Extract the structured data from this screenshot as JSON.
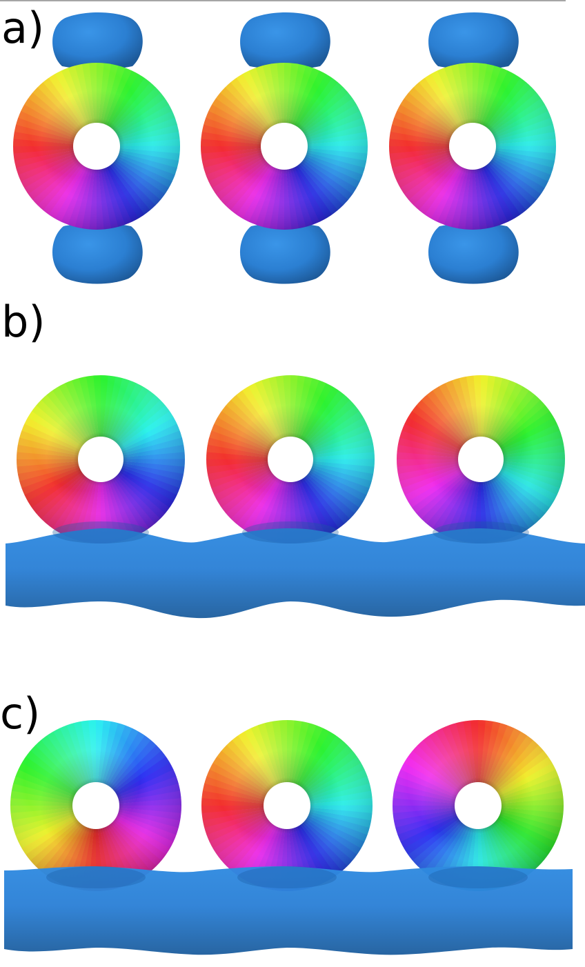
{
  "figure": {
    "panels": [
      {
        "label": "a)",
        "torus_phase_deg": [
          0,
          0,
          0
        ],
        "cap_lobes": true,
        "bottom_sheet": false
      },
      {
        "label": "b)",
        "torus_phase_deg": [
          30,
          0,
          -30
        ],
        "cap_lobes": false,
        "bottom_sheet": true
      },
      {
        "label": "c)",
        "torus_phase_deg": [
          90,
          0,
          -90
        ],
        "cap_lobes": false,
        "bottom_sheet": true
      }
    ],
    "colors": {
      "lobe_blue": "#2b7fd2",
      "sheet_blue": "#2b80d6",
      "colormap": "rainbow-hue"
    }
  }
}
